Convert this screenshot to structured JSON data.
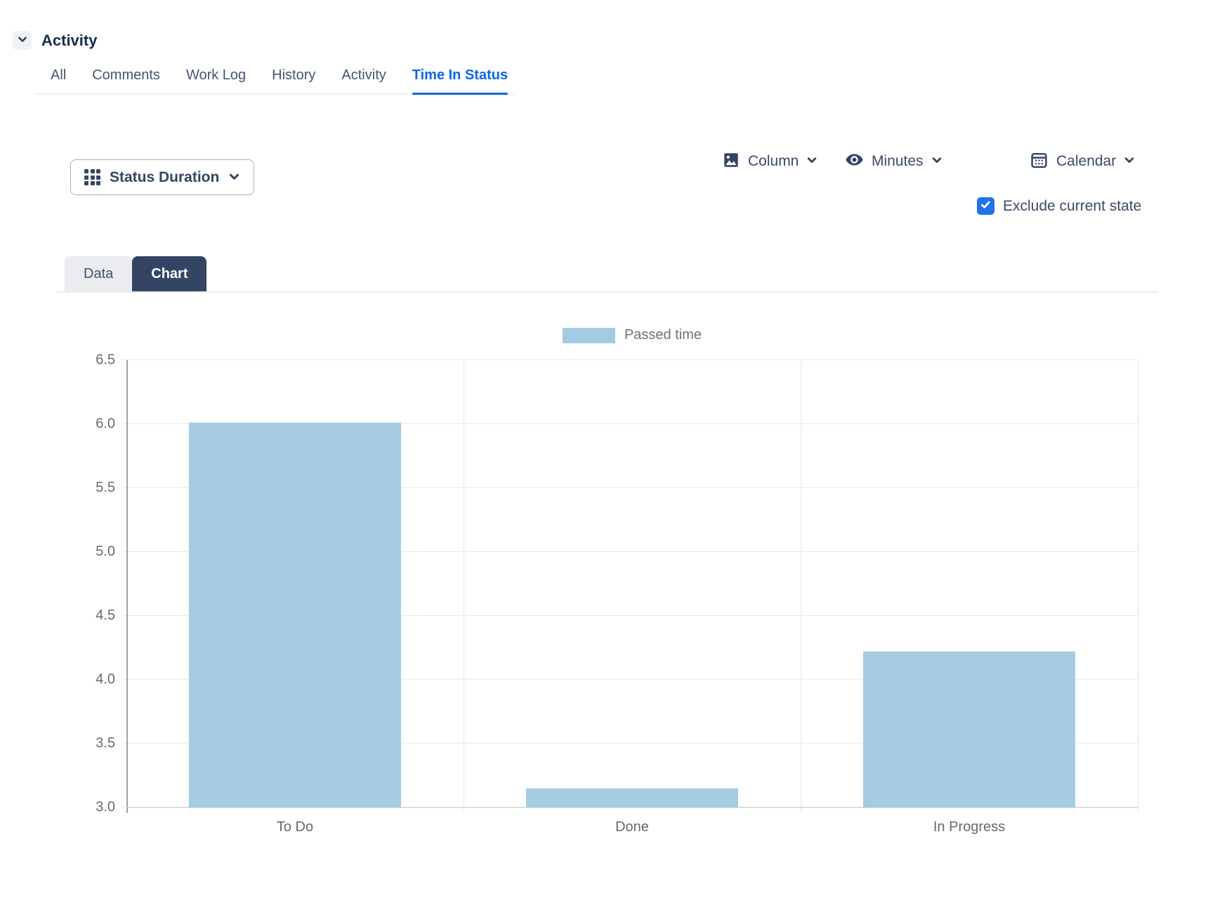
{
  "activity_section": {
    "title": "Activity",
    "collapse_icon": "chevron-down",
    "active_tab_color": "#0C66E4",
    "tabs": [
      {
        "label": "All",
        "active": false
      },
      {
        "label": "Comments",
        "active": false
      },
      {
        "label": "Work Log",
        "active": false
      },
      {
        "label": "History",
        "active": false
      },
      {
        "label": "Activity",
        "active": false
      },
      {
        "label": "Time In Status",
        "active": true
      }
    ]
  },
  "toolbar": {
    "report_selector": {
      "label": "Status Duration",
      "icon": "grid-icon"
    },
    "dropdowns": [
      {
        "id": "chart_type",
        "label": "Column",
        "icon": "image-icon"
      },
      {
        "id": "time_unit",
        "label": "Minutes",
        "icon": "eye-icon"
      },
      {
        "id": "calendar",
        "label": "Calendar",
        "icon": "calendar-icon"
      }
    ],
    "exclude_current_state": {
      "label": "Exclude current state",
      "checked": true,
      "checkbox_color": "#2272E8"
    }
  },
  "view_tabs": {
    "items": [
      {
        "label": "Data",
        "active": false
      },
      {
        "label": "Chart",
        "active": true
      }
    ],
    "colors": {
      "active_bg": "#344563",
      "active_text": "#FFFFFF",
      "inactive_bg": "#EBECF0",
      "inactive_text": "#42526E"
    }
  },
  "chart_data": {
    "type": "bar",
    "title": "",
    "xlabel": "",
    "ylabel": "",
    "categories": [
      "To Do",
      "Done",
      "In Progress"
    ],
    "series": [
      {
        "name": "Passed time",
        "color": "#A5CBE2",
        "values": [
          6.01,
          3.15,
          4.22
        ]
      }
    ],
    "ylim": [
      3.0,
      6.5
    ],
    "yticks": [
      3.0,
      3.5,
      4.0,
      4.5,
      5.0,
      5.5,
      6.0,
      6.5
    ],
    "grid": true,
    "legend_position": "top",
    "bar_width_ratio": 0.63
  }
}
